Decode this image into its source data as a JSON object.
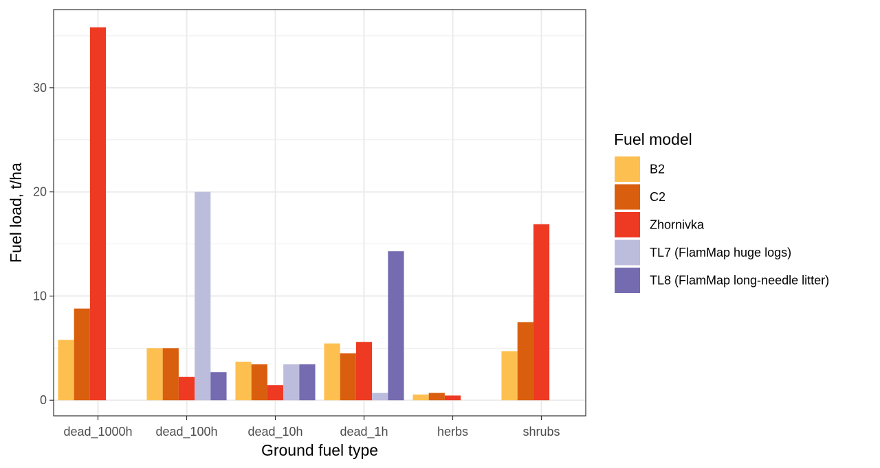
{
  "chart_data": {
    "type": "bar",
    "title": "",
    "xlabel": "Ground fuel type",
    "ylabel": "Fuel load, t/ha",
    "ylim": [
      -1.5,
      37.5
    ],
    "yticks": [
      0,
      10,
      20,
      30
    ],
    "grid": true,
    "legend": {
      "title": "Fuel model",
      "position": "right"
    },
    "categories": [
      "dead_1000h",
      "dead_100h",
      "dead_10h",
      "dead_1h",
      "herbs",
      "shrubs"
    ],
    "series": [
      {
        "name": "B2",
        "color": "#FDC050",
        "values": [
          5.8,
          5.0,
          3.7,
          5.45,
          0.55,
          4.7
        ]
      },
      {
        "name": "C2",
        "color": "#D95F0E",
        "values": [
          8.8,
          5.0,
          3.45,
          4.5,
          0.7,
          7.5
        ]
      },
      {
        "name": "Zhornivka",
        "color": "#EE3A23",
        "values": [
          35.8,
          2.25,
          1.45,
          5.6,
          0.45,
          16.9
        ]
      },
      {
        "name": "TL7 (FlamMap huge logs)",
        "color": "#BCBDDC",
        "values": [
          null,
          20.0,
          3.45,
          0.7,
          null,
          null
        ]
      },
      {
        "name": "TL8 (FlamMap long-needle litter)",
        "color": "#756BB1",
        "values": [
          null,
          2.7,
          3.45,
          14.3,
          null,
          null
        ]
      }
    ]
  }
}
